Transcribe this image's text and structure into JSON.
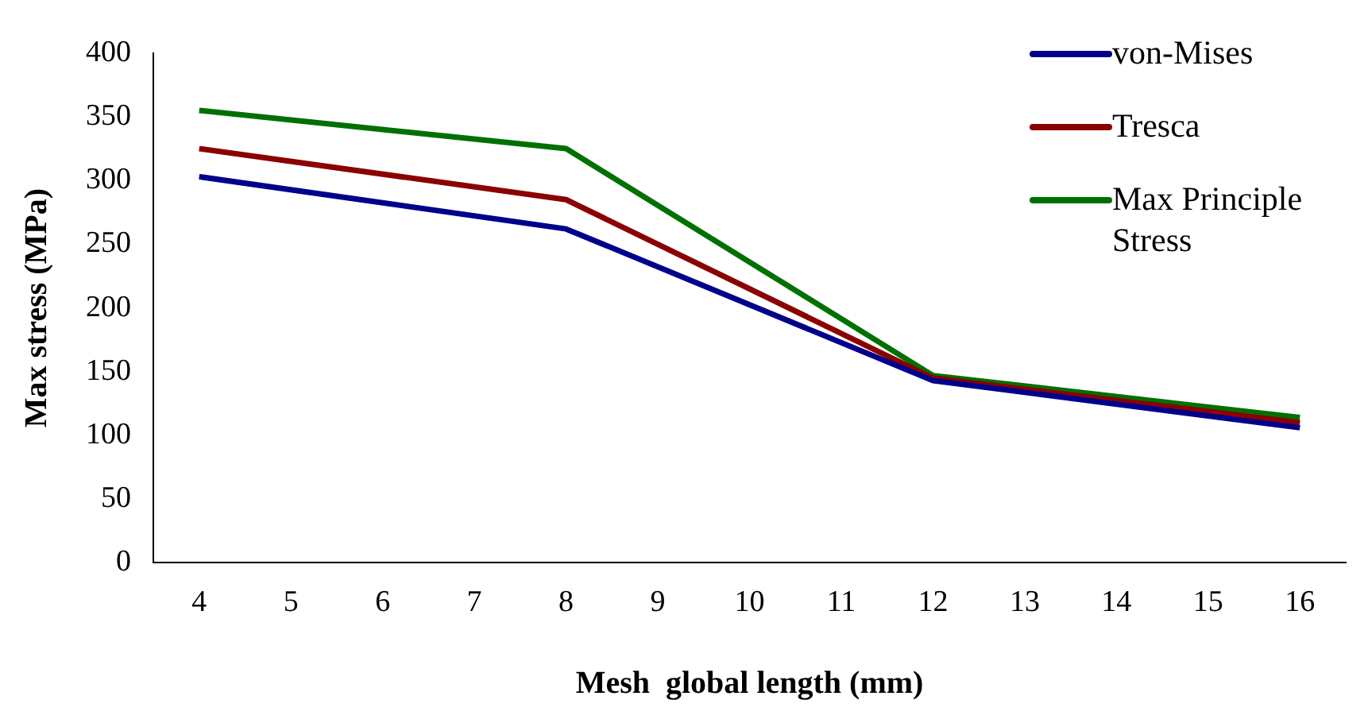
{
  "chart_data": {
    "type": "line",
    "xlabel": "Mesh  global length (mm)",
    "ylabel": "Max stress (MPa)",
    "x": [
      4,
      8,
      12,
      16
    ],
    "xlim": [
      3.5,
      16.5
    ],
    "xticks": [
      4,
      5,
      6,
      7,
      8,
      9,
      10,
      11,
      12,
      13,
      14,
      15,
      16
    ],
    "ylim": [
      0,
      400
    ],
    "yticks": [
      0,
      50,
      100,
      150,
      200,
      250,
      300,
      350,
      400
    ],
    "grid": false,
    "legend": "right",
    "marker": "none",
    "line_style": "solid",
    "series": [
      {
        "name": "von-Mises",
        "color": "#00008b",
        "values": [
          303,
          262,
          143,
          106
        ]
      },
      {
        "name": "Tresca",
        "color": "#8b0000",
        "values": [
          325,
          285,
          145,
          110
        ]
      },
      {
        "name": "Max Principle Stress",
        "color": "#007000",
        "values": [
          355,
          325,
          147,
          114
        ]
      }
    ]
  }
}
